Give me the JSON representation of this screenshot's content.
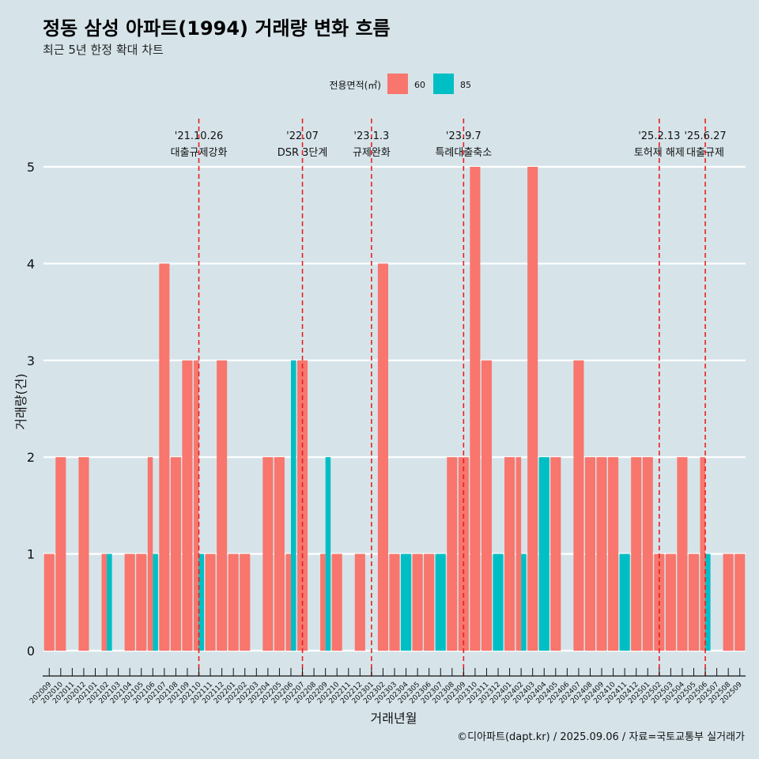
{
  "chart_data": {
    "type": "bar",
    "title": "정동 삼성 아파트(1994) 거래량 변화 흐름",
    "subtitle": "최근 5년 한정 확대 차트",
    "xlabel": "거래년월",
    "ylabel": "거래량(건)",
    "caption": "©디아파트(dapt.kr) / 2025.09.06 / 자료=국토교통부 실거래가",
    "legend": {
      "title": "전용면적(㎡)",
      "placement": "top",
      "items": [
        {
          "label": "60",
          "color": "#f8766d"
        },
        {
          "label": "85",
          "color": "#00bfc4"
        }
      ]
    },
    "ylim": [
      0,
      5
    ],
    "yticks": [
      "0",
      "1",
      "2",
      "3",
      "4",
      "5"
    ],
    "grid": true,
    "categories": [
      "202009",
      "202010",
      "202011",
      "202012",
      "202101",
      "202102",
      "202103",
      "202104",
      "202105",
      "202106",
      "202107",
      "202108",
      "202109",
      "202110",
      "202111",
      "202112",
      "202201",
      "202202",
      "202203",
      "202204",
      "202205",
      "202206",
      "202207",
      "202208",
      "202209",
      "202210",
      "202211",
      "202212",
      "202301",
      "202302",
      "202303",
      "202304",
      "202305",
      "202306",
      "202307",
      "202308",
      "202309",
      "202310",
      "202311",
      "202312",
      "202401",
      "202402",
      "202403",
      "202404",
      "202405",
      "202406",
      "202407",
      "202408",
      "202409",
      "202410",
      "202411",
      "202412",
      "202501",
      "202502",
      "202503",
      "202504",
      "202505",
      "202506",
      "202507",
      "202508",
      "202509"
    ],
    "series": [
      {
        "name": "60",
        "color": "#f8766d",
        "values": [
          1,
          2,
          0,
          2,
          0,
          1,
          0,
          1,
          1,
          2,
          4,
          2,
          3,
          3,
          1,
          3,
          1,
          1,
          0,
          2,
          2,
          1,
          3,
          0,
          1,
          1,
          0,
          1,
          0,
          4,
          1,
          0,
          1,
          1,
          0,
          2,
          2,
          5,
          3,
          0,
          2,
          2,
          5,
          0,
          2,
          0,
          3,
          2,
          2,
          2,
          0,
          2,
          2,
          1,
          1,
          2,
          1,
          2,
          0,
          1,
          1
        ]
      },
      {
        "name": "85",
        "color": "#00bfc4",
        "values": [
          0,
          0,
          0,
          0,
          0,
          1,
          0,
          0,
          0,
          1,
          0,
          0,
          0,
          1,
          0,
          0,
          0,
          0,
          0,
          0,
          0,
          3,
          0,
          0,
          2,
          0,
          0,
          0,
          0,
          0,
          0,
          1,
          0,
          0,
          1,
          0,
          0,
          0,
          0,
          1,
          0,
          1,
          0,
          2,
          0,
          0,
          0,
          0,
          0,
          0,
          1,
          0,
          0,
          0,
          0,
          0,
          0,
          1,
          0,
          0,
          0
        ]
      }
    ],
    "events": [
      {
        "date_label": "'21.10.26",
        "policy": "대출규제강화",
        "month": "202110"
      },
      {
        "date_label": "'22.07",
        "policy": "DSR 3단계",
        "month": "202207"
      },
      {
        "date_label": "'23.1.3",
        "policy": "규제완화",
        "month": "202301"
      },
      {
        "date_label": "'23.9.7",
        "policy": "특례대출축소",
        "month": "202309"
      },
      {
        "date_label": "'25.2.13",
        "policy": "토허제 해제",
        "month": "202502"
      },
      {
        "date_label": "'25.6.27",
        "policy": "대출규제",
        "month": "202506"
      }
    ]
  }
}
